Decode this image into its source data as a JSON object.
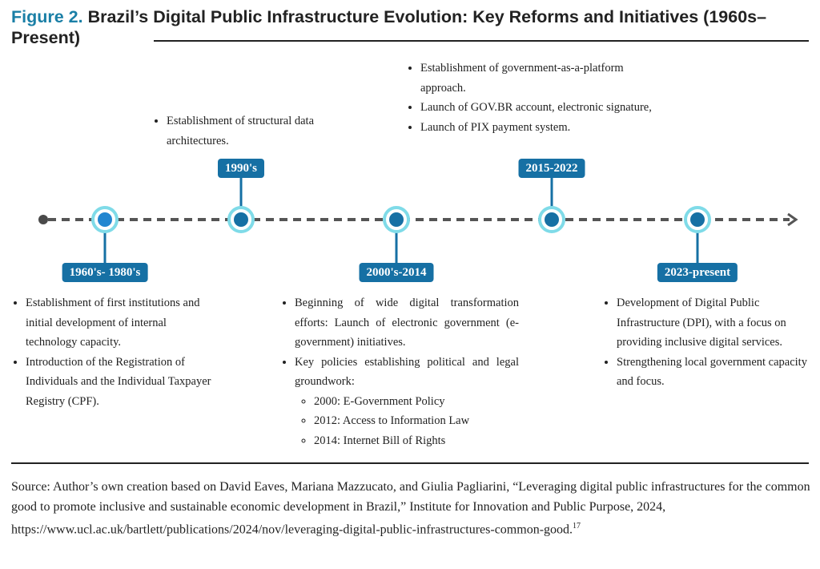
{
  "title": {
    "figure_label": "Figure 2.",
    "text": " Brazil’s Digital Public Infrastructure Evolution: Key Reforms and Initiatives (1960s–Present)"
  },
  "timeline": {
    "colors": {
      "tag": "#1670a4",
      "ring": "#7fdbe8",
      "line": "#555555"
    },
    "periods": [
      {
        "label": "1960's- 1980's",
        "items": [
          "Establishment of first institutions and initial development of internal technology capacity.",
          "Introduction of the Registration of Individuals and the Individual Taxpayer Registry (CPF)."
        ]
      },
      {
        "label": "1990's",
        "items": [
          "Establishment of structural data architectures."
        ]
      },
      {
        "label": "2000's-2014",
        "items": [
          "Beginning of wide digital transformation efforts: Launch of electronic government (e-government) initiatives.",
          "Key policies establishing political and legal groundwork:"
        ],
        "subitems": [
          "2000: E-Government Policy",
          "2012: Access to Information Law",
          "2014: Internet Bill of Rights"
        ]
      },
      {
        "label": "2015-2022",
        "items": [
          "Establishment of government-as-a-platform approach.",
          "Launch of GOV.BR account, electronic signature,",
          "Launch of PIX payment system."
        ]
      },
      {
        "label": "2023-present",
        "items": [
          "Development of Digital Public Infrastructure (DPI), with a focus on providing inclusive digital services.",
          "Strengthening local government capacity and focus."
        ]
      }
    ]
  },
  "source": {
    "text": "Source: Author’s own creation based on David Eaves, Mariana Mazzucato, and Giulia Pagliarini, “Leveraging digital public infrastructures for the common good to promote inclusive and sustainable economic development in Brazil,” Institute for Innovation and Public Purpose, 2024, https://www.ucl.ac.uk/bartlett/publications/2024/nov/leveraging-digital-public-infrastructures-common-good.",
    "footnote": "17"
  }
}
